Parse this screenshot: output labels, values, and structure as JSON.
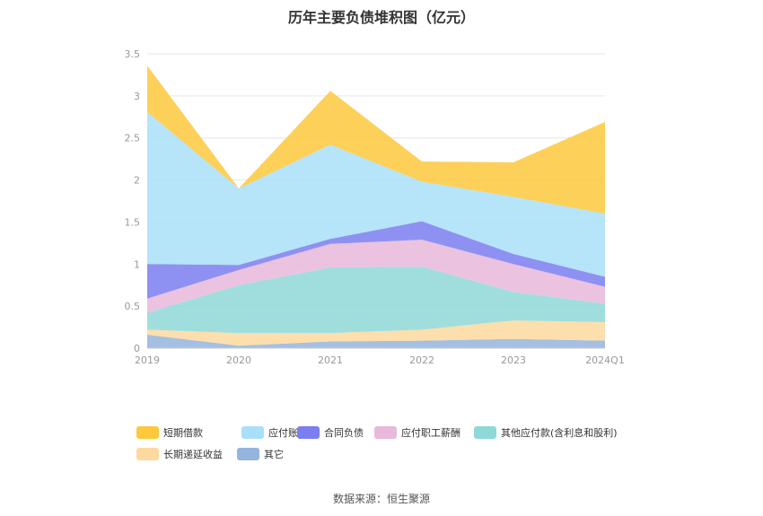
{
  "chart_data": {
    "type": "area",
    "stacked": true,
    "title": "历年主要负债堆积图（亿元）",
    "source": "数据来源：恒生聚源",
    "categories": [
      "2019",
      "2020",
      "2021",
      "2022",
      "2023",
      "2024Q1"
    ],
    "ylim": [
      0,
      3.5
    ],
    "yticks": [
      "0",
      "0.5",
      "1",
      "1.5",
      "2",
      "2.5",
      "3",
      "3.5"
    ],
    "grid": true,
    "legend_position": "bottom",
    "series": [
      {
        "name": "其它",
        "color": "#94b4dd",
        "values": [
          0.16,
          0.03,
          0.08,
          0.09,
          0.11,
          0.09
        ]
      },
      {
        "name": "长期递延收益",
        "color": "#fcd99e",
        "values": [
          0.06,
          0.15,
          0.1,
          0.13,
          0.22,
          0.22
        ]
      },
      {
        "name": "其他应付款(含利息和股利)",
        "color": "#8fd8d8",
        "values": [
          0.2,
          0.57,
          0.78,
          0.75,
          0.34,
          0.22
        ]
      },
      {
        "name": "应付职工薪酬",
        "color": "#e8b9da",
        "values": [
          0.17,
          0.18,
          0.28,
          0.32,
          0.33,
          0.2
        ]
      },
      {
        "name": "合同负债",
        "color": "#7b7ef0",
        "values": [
          0.41,
          0.06,
          0.06,
          0.22,
          0.12,
          0.12
        ]
      },
      {
        "name": "应付账款",
        "color": "#a9dff8",
        "values": [
          1.81,
          0.91,
          1.12,
          0.47,
          0.68,
          0.75
        ]
      },
      {
        "name": "短期借款",
        "color": "#fdc83c",
        "values": [
          0.55,
          0.0,
          0.64,
          0.24,
          0.41,
          1.09
        ]
      }
    ],
    "legend_order": [
      "短期借款",
      "应付账款",
      "合同负债",
      "应付职工薪酬",
      "其他应付款(含利息和股利)",
      "长期递延收益",
      "其它"
    ]
  }
}
